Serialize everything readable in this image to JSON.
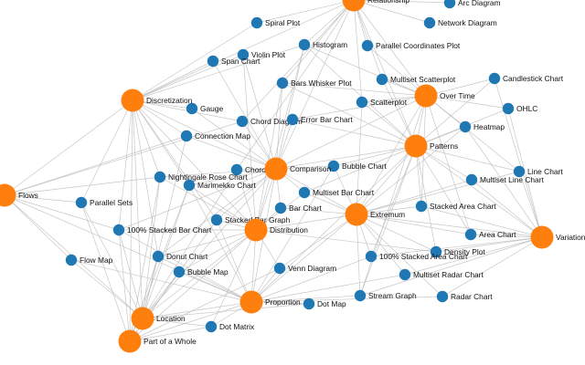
{
  "diagram": {
    "type": "force-directed network",
    "color_category": "#ff7f0e",
    "color_chart": "#1f77b4",
    "color_edge": "#bdbdbd"
  },
  "nodes": [
    {
      "id": "relationship",
      "label": "Relationship",
      "kind": "category"
    },
    {
      "id": "discretization",
      "label": "Discretization",
      "kind": "category"
    },
    {
      "id": "over-time",
      "label": "Over Time",
      "kind": "category"
    },
    {
      "id": "patterns",
      "label": "Patterns",
      "kind": "category"
    },
    {
      "id": "comparison",
      "label": "Comparison",
      "kind": "category"
    },
    {
      "id": "flows",
      "label": "Flows",
      "kind": "category"
    },
    {
      "id": "extremum",
      "label": "Extremum",
      "kind": "category"
    },
    {
      "id": "distribution",
      "label": "Distribution",
      "kind": "category"
    },
    {
      "id": "variation",
      "label": "Variation",
      "kind": "category"
    },
    {
      "id": "proportion",
      "label": "Proportion",
      "kind": "category"
    },
    {
      "id": "location",
      "label": "Location",
      "kind": "category"
    },
    {
      "id": "part-of-a-whole",
      "label": "Part of a Whole",
      "kind": "category"
    },
    {
      "id": "arc-diagram",
      "label": "Arc Diagram",
      "kind": "chart"
    },
    {
      "id": "spiral-plot",
      "label": "Spiral Plot",
      "kind": "chart"
    },
    {
      "id": "network-diagram",
      "label": "Network Diagram",
      "kind": "chart"
    },
    {
      "id": "histogram",
      "label": "Histogram",
      "kind": "chart"
    },
    {
      "id": "parallel-coordinates-plot",
      "label": "Parallel Coordinates Plot",
      "kind": "chart"
    },
    {
      "id": "violin-plot",
      "label": "Violin Plot",
      "kind": "chart"
    },
    {
      "id": "span-chart",
      "label": "Span Chart",
      "kind": "chart"
    },
    {
      "id": "multiset-scatterplot",
      "label": "Multiset Scatterplot",
      "kind": "chart"
    },
    {
      "id": "candlestick-chart",
      "label": "Candlestick Chart",
      "kind": "chart"
    },
    {
      "id": "bars-whisker-plot",
      "label": "Bars Whisker Plot",
      "kind": "chart"
    },
    {
      "id": "scatterplot",
      "label": "Scatterplot",
      "kind": "chart"
    },
    {
      "id": "gauge",
      "label": "Gauge",
      "kind": "chart"
    },
    {
      "id": "ohlc",
      "label": "OHLC",
      "kind": "chart"
    },
    {
      "id": "chord-diagram",
      "label": "Chord Diagram",
      "kind": "chart"
    },
    {
      "id": "error-bar-chart",
      "label": "Error Bar Chart",
      "kind": "chart"
    },
    {
      "id": "heatmap",
      "label": "Heatmap",
      "kind": "chart"
    },
    {
      "id": "connection-map",
      "label": "Connection Map",
      "kind": "chart"
    },
    {
      "id": "choropleth",
      "label": "Choropleth",
      "kind": "chart"
    },
    {
      "id": "bubble-chart",
      "label": "Bubble Chart",
      "kind": "chart"
    },
    {
      "id": "line-chart",
      "label": "Line Chart",
      "kind": "chart"
    },
    {
      "id": "nightingale-rose-chart",
      "label": "Nightingale Rose Chart",
      "kind": "chart"
    },
    {
      "id": "multiset-line-chart",
      "label": "Multiset Line Chart",
      "kind": "chart"
    },
    {
      "id": "marimekko-chart",
      "label": "Marimekko Chart",
      "kind": "chart"
    },
    {
      "id": "multiset-bar-chart",
      "label": "Multiset Bar Chart",
      "kind": "chart"
    },
    {
      "id": "parallel-sets",
      "label": "Parallel Sets",
      "kind": "chart"
    },
    {
      "id": "bar-chart",
      "label": "Bar Chart",
      "kind": "chart"
    },
    {
      "id": "stacked-area-chart",
      "label": "Stacked Area Chart",
      "kind": "chart"
    },
    {
      "id": "stacked-bar-graph",
      "label": "Stacked Bar Graph",
      "kind": "chart"
    },
    {
      "id": "100-stacked-bar-chart",
      "label": "100% Stacked Bar Chart",
      "kind": "chart"
    },
    {
      "id": "area-chart",
      "label": "Area Chart",
      "kind": "chart"
    },
    {
      "id": "donut-chart",
      "label": "Donut Chart",
      "kind": "chart"
    },
    {
      "id": "density-plot",
      "label": "Density Plot",
      "kind": "chart"
    },
    {
      "id": "100-stacked-area-chart",
      "label": "100% Stacked Area Chart",
      "kind": "chart"
    },
    {
      "id": "flow-map",
      "label": "Flow Map",
      "kind": "chart"
    },
    {
      "id": "bubble-map",
      "label": "Bubble Map",
      "kind": "chart"
    },
    {
      "id": "venn-diagram",
      "label": "Venn Diagram",
      "kind": "chart"
    },
    {
      "id": "multiset-radar-chart",
      "label": "Multiset Radar Chart",
      "kind": "chart"
    },
    {
      "id": "stream-graph",
      "label": "Stream Graph",
      "kind": "chart"
    },
    {
      "id": "radar-chart",
      "label": "Radar Chart",
      "kind": "chart"
    },
    {
      "id": "dot-map",
      "label": "Dot Map",
      "kind": "chart"
    },
    {
      "id": "dot-matrix",
      "label": "Dot Matrix",
      "kind": "chart"
    }
  ],
  "links": [
    [
      "relationship",
      "arc-diagram"
    ],
    [
      "relationship",
      "network-diagram"
    ],
    [
      "relationship",
      "histogram"
    ],
    [
      "relationship",
      "spiral-plot"
    ],
    [
      "relationship",
      "parallel-coordinates-plot"
    ],
    [
      "relationship",
      "multiset-scatterplot"
    ],
    [
      "relationship",
      "scatterplot"
    ],
    [
      "relationship",
      "chord-diagram"
    ],
    [
      "relationship",
      "comparison"
    ],
    [
      "relationship",
      "patterns"
    ],
    [
      "relationship",
      "over-time"
    ],
    [
      "relationship",
      "discretization"
    ],
    [
      "relationship",
      "choropleth"
    ],
    [
      "relationship",
      "bars-whisker-plot"
    ],
    [
      "discretization",
      "histogram"
    ],
    [
      "discretization",
      "span-chart"
    ],
    [
      "discretization",
      "gauge"
    ],
    [
      "discretization",
      "connection-map"
    ],
    [
      "discretization",
      "nightingale-rose-chart"
    ],
    [
      "discretization",
      "marimekko-chart"
    ],
    [
      "discretization",
      "stacked-bar-graph"
    ],
    [
      "discretization",
      "100-stacked-bar-chart"
    ],
    [
      "discretization",
      "donut-chart"
    ],
    [
      "discretization",
      "location"
    ],
    [
      "discretization",
      "part-of-a-whole"
    ],
    [
      "discretization",
      "distribution"
    ],
    [
      "discretization",
      "comparison"
    ],
    [
      "discretization",
      "chord-diagram"
    ],
    [
      "discretization",
      "parallel-sets"
    ],
    [
      "discretization",
      "flows"
    ],
    [
      "discretization",
      "violin-plot"
    ],
    [
      "discretization",
      "spiral-plot"
    ],
    [
      "over-time",
      "multiset-scatterplot"
    ],
    [
      "over-time",
      "candlestick-chart"
    ],
    [
      "over-time",
      "ohlc"
    ],
    [
      "over-time",
      "heatmap"
    ],
    [
      "over-time",
      "scatterplot"
    ],
    [
      "over-time",
      "line-chart"
    ],
    [
      "over-time",
      "bars-whisker-plot"
    ],
    [
      "over-time",
      "parallel-coordinates-plot"
    ],
    [
      "over-time",
      "patterns"
    ],
    [
      "over-time",
      "stacked-area-chart"
    ],
    [
      "over-time",
      "stream-graph"
    ],
    [
      "over-time",
      "area-chart"
    ],
    [
      "over-time",
      "comparison"
    ],
    [
      "over-time",
      "extremum"
    ],
    [
      "over-time",
      "error-bar-chart"
    ],
    [
      "over-time",
      "histogram"
    ],
    [
      "patterns",
      "heatmap"
    ],
    [
      "patterns",
      "scatterplot"
    ],
    [
      "patterns",
      "line-chart"
    ],
    [
      "patterns",
      "multiset-line-chart"
    ],
    [
      "patterns",
      "stacked-area-chart"
    ],
    [
      "patterns",
      "area-chart"
    ],
    [
      "patterns",
      "density-plot"
    ],
    [
      "patterns",
      "bubble-chart"
    ],
    [
      "patterns",
      "error-bar-chart"
    ],
    [
      "patterns",
      "comparison"
    ],
    [
      "patterns",
      "extremum"
    ],
    [
      "patterns",
      "variation"
    ],
    [
      "patterns",
      "multiset-scatterplot"
    ],
    [
      "patterns",
      "candlestick-chart"
    ],
    [
      "patterns",
      "ohlc"
    ],
    [
      "patterns",
      "multiset-bar-chart"
    ],
    [
      "patterns",
      "bars-whisker-plot"
    ],
    [
      "patterns",
      "stream-graph"
    ],
    [
      "patterns",
      "100-stacked-area-chart"
    ],
    [
      "patterns",
      "histogram"
    ],
    [
      "patterns",
      "proportion"
    ],
    [
      "comparison",
      "choropleth"
    ],
    [
      "comparison",
      "bubble-chart"
    ],
    [
      "comparison",
      "multiset-bar-chart"
    ],
    [
      "comparison",
      "bar-chart"
    ],
    [
      "comparison",
      "stacked-bar-graph"
    ],
    [
      "comparison",
      "nightingale-rose-chart"
    ],
    [
      "comparison",
      "marimekko-chart"
    ],
    [
      "comparison",
      "chord-diagram"
    ],
    [
      "comparison",
      "error-bar-chart"
    ],
    [
      "comparison",
      "histogram"
    ],
    [
      "comparison",
      "distribution"
    ],
    [
      "comparison",
      "extremum"
    ],
    [
      "comparison",
      "proportion"
    ],
    [
      "comparison",
      "violin-plot"
    ],
    [
      "comparison",
      "bars-whisker-plot"
    ],
    [
      "comparison",
      "connection-map"
    ],
    [
      "comparison",
      "100-stacked-bar-chart"
    ],
    [
      "comparison",
      "donut-chart"
    ],
    [
      "comparison",
      "location"
    ],
    [
      "comparison",
      "span-chart"
    ],
    [
      "comparison",
      "gauge"
    ],
    [
      "flows",
      "parallel-sets"
    ],
    [
      "flows",
      "connection-map"
    ],
    [
      "flows",
      "flow-map"
    ],
    [
      "flows",
      "chord-diagram"
    ],
    [
      "flows",
      "location"
    ],
    [
      "flows",
      "proportion"
    ],
    [
      "flows",
      "100-stacked-bar-chart"
    ],
    [
      "flows",
      "nightingale-rose-chart"
    ],
    [
      "extremum",
      "bar-chart"
    ],
    [
      "extremum",
      "multiset-bar-chart"
    ],
    [
      "extremum",
      "stacked-area-chart"
    ],
    [
      "extremum",
      "100-stacked-area-chart"
    ],
    [
      "extremum",
      "density-plot"
    ],
    [
      "extremum",
      "area-chart"
    ],
    [
      "extremum",
      "stream-graph"
    ],
    [
      "extremum",
      "multiset-radar-chart"
    ],
    [
      "extremum",
      "radar-chart"
    ],
    [
      "extremum",
      "variation"
    ],
    [
      "extremum",
      "proportion"
    ],
    [
      "extremum",
      "distribution"
    ],
    [
      "extremum",
      "venn-diagram"
    ],
    [
      "extremum",
      "multiset-line-chart"
    ],
    [
      "extremum",
      "line-chart"
    ],
    [
      "extremum",
      "bubble-chart"
    ],
    [
      "extremum",
      "scatterplot"
    ],
    [
      "extremum",
      "heatmap"
    ],
    [
      "distribution",
      "stacked-bar-graph"
    ],
    [
      "distribution",
      "bar-chart"
    ],
    [
      "distribution",
      "100-stacked-bar-chart"
    ],
    [
      "distribution",
      "donut-chart"
    ],
    [
      "distribution",
      "bubble-map"
    ],
    [
      "distribution",
      "venn-diagram"
    ],
    [
      "distribution",
      "marimekko-chart"
    ],
    [
      "distribution",
      "multiset-bar-chart"
    ],
    [
      "distribution",
      "choropleth"
    ],
    [
      "distribution",
      "proportion"
    ],
    [
      "distribution",
      "location"
    ],
    [
      "distribution",
      "part-of-a-whole"
    ],
    [
      "distribution",
      "histogram"
    ],
    [
      "distribution",
      "violin-plot"
    ],
    [
      "distribution",
      "bars-whisker-plot"
    ],
    [
      "distribution",
      "density-plot"
    ],
    [
      "distribution",
      "dot-matrix"
    ],
    [
      "distribution",
      "nightingale-rose-chart"
    ],
    [
      "variation",
      "line-chart"
    ],
    [
      "variation",
      "multiset-line-chart"
    ],
    [
      "variation",
      "area-chart"
    ],
    [
      "variation",
      "density-plot"
    ],
    [
      "variation",
      "radar-chart"
    ],
    [
      "variation",
      "multiset-radar-chart"
    ],
    [
      "variation",
      "stacked-area-chart"
    ],
    [
      "variation",
      "stream-graph"
    ],
    [
      "variation",
      "heatmap"
    ],
    [
      "variation",
      "candlestick-chart"
    ],
    [
      "variation",
      "ohlc"
    ],
    [
      "variation",
      "100-stacked-area-chart"
    ],
    [
      "proportion",
      "stream-graph"
    ],
    [
      "proportion",
      "100-stacked-area-chart"
    ],
    [
      "proportion",
      "dot-map"
    ],
    [
      "proportion",
      "dot-matrix"
    ],
    [
      "proportion",
      "venn-diagram"
    ],
    [
      "proportion",
      "bubble-map"
    ],
    [
      "proportion",
      "donut-chart"
    ],
    [
      "proportion",
      "location"
    ],
    [
      "proportion",
      "part-of-a-whole"
    ],
    [
      "proportion",
      "multiset-radar-chart"
    ],
    [
      "proportion",
      "radar-chart"
    ],
    [
      "proportion",
      "stacked-bar-graph"
    ],
    [
      "proportion",
      "100-stacked-bar-chart"
    ],
    [
      "proportion",
      "bubble-chart"
    ],
    [
      "proportion",
      "flow-map"
    ],
    [
      "proportion",
      "marimekko-chart"
    ],
    [
      "location",
      "flow-map"
    ],
    [
      "location",
      "bubble-map"
    ],
    [
      "location",
      "donut-chart"
    ],
    [
      "location",
      "dot-matrix"
    ],
    [
      "location",
      "parallel-sets"
    ],
    [
      "location",
      "100-stacked-bar-chart"
    ],
    [
      "location",
      "connection-map"
    ],
    [
      "location",
      "choropleth"
    ],
    [
      "location",
      "dot-map"
    ],
    [
      "location",
      "nightingale-rose-chart"
    ],
    [
      "location",
      "marimekko-chart"
    ],
    [
      "part-of-a-whole",
      "donut-chart"
    ],
    [
      "part-of-a-whole",
      "dot-matrix"
    ],
    [
      "part-of-a-whole",
      "stacked-bar-graph"
    ],
    [
      "part-of-a-whole",
      "100-stacked-bar-chart"
    ],
    [
      "part-of-a-whole",
      "marimekko-chart"
    ],
    [
      "part-of-a-whole",
      "nightingale-rose-chart"
    ],
    [
      "part-of-a-whole",
      "venn-diagram"
    ],
    [
      "part-of-a-whole",
      "bubble-map"
    ],
    [
      "part-of-a-whole",
      "parallel-sets"
    ]
  ]
}
